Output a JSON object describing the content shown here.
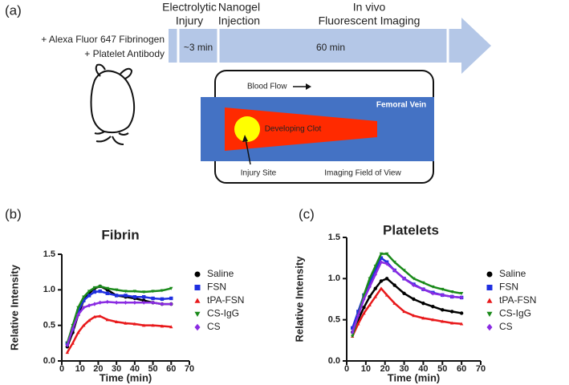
{
  "diagram": {
    "panel_label": "(a)",
    "injury_label": [
      "Electrolytic",
      "Injury"
    ],
    "injection_label": [
      "Nanogel",
      "Injection"
    ],
    "imaging_label": [
      "In vivo",
      "Fluorescent Imaging"
    ],
    "reagents": [
      "+ Alexa Fluor 647 Fibrinogen",
      "+ Platelet Antibody"
    ],
    "interval_short": "~3 min",
    "interval_long": "60 min",
    "blood_flow": "Blood Flow",
    "vein": "Femoral Vein",
    "clot": "Developing Clot",
    "injury_site": "Injury Site",
    "field_of_view": "Imaging Field of View"
  },
  "chart_data": [
    {
      "type": "line",
      "panel_label": "(b)",
      "title": "Fibrin",
      "x_label": "Time (min)",
      "y_label": "Relative Intensity",
      "x": [
        3,
        6,
        9,
        12,
        15,
        18,
        21,
        25,
        30,
        35,
        40,
        45,
        50,
        55,
        60
      ],
      "xlim": [
        0,
        70
      ],
      "xticks": [
        0,
        10,
        20,
        30,
        40,
        50,
        60,
        70
      ],
      "ylim": [
        0,
        1.5
      ],
      "yticks": [
        {
          "value": 0,
          "label": "0.0"
        },
        0.5,
        {
          "value": 1,
          "label": "1.0"
        },
        1.5
      ],
      "series": [
        {
          "name": "Saline",
          "color": "#000000",
          "marker": "circle",
          "values": [
            0.2,
            0.4,
            0.65,
            0.85,
            0.95,
            1.02,
            1.05,
            1.0,
            0.92,
            0.9,
            0.88,
            0.85,
            0.82,
            0.8,
            0.8
          ]
        },
        {
          "name": "FSN",
          "color": "#1f2fe0",
          "marker": "square",
          "values": [
            0.25,
            0.45,
            0.7,
            0.85,
            0.92,
            0.97,
            0.98,
            0.95,
            0.92,
            0.92,
            0.9,
            0.9,
            0.88,
            0.87,
            0.88
          ]
        },
        {
          "name": "tPA-FSN",
          "color": "#e8191b",
          "marker": "triangle",
          "values": [
            0.12,
            0.25,
            0.4,
            0.5,
            0.57,
            0.62,
            0.63,
            0.58,
            0.55,
            0.53,
            0.52,
            0.5,
            0.5,
            0.49,
            0.48
          ]
        },
        {
          "name": "CS-IgG",
          "color": "#1a8a1a",
          "marker": "triangle-down",
          "values": [
            0.25,
            0.5,
            0.75,
            0.9,
            0.98,
            1.03,
            1.05,
            1.02,
            1.0,
            0.98,
            0.98,
            0.97,
            0.98,
            0.99,
            1.02
          ]
        },
        {
          "name": "CS",
          "color": "#8a2be2",
          "marker": "diamond",
          "values": [
            0.22,
            0.45,
            0.65,
            0.75,
            0.78,
            0.8,
            0.82,
            0.83,
            0.82,
            0.82,
            0.82,
            0.82,
            0.82,
            0.8,
            0.8
          ]
        }
      ]
    },
    {
      "type": "line",
      "panel_label": "(c)",
      "title": "Platelets",
      "x_label": "Time (min)",
      "y_label": "Relative Intensity",
      "x": [
        3,
        6,
        9,
        12,
        15,
        18,
        21,
        25,
        30,
        35,
        40,
        45,
        50,
        55,
        60
      ],
      "xlim": [
        0,
        70
      ],
      "xticks": [
        0,
        10,
        20,
        30,
        40,
        50,
        60,
        70
      ],
      "ylim": [
        0,
        1.5
      ],
      "yticks": [
        {
          "value": 0,
          "label": "0.0"
        },
        0.5,
        {
          "value": 1,
          "label": "1.0"
        },
        1.5
      ],
      "series": [
        {
          "name": "Saline",
          "color": "#000000",
          "marker": "circle",
          "values": [
            0.35,
            0.5,
            0.65,
            0.78,
            0.88,
            0.97,
            1.0,
            0.92,
            0.82,
            0.75,
            0.7,
            0.66,
            0.62,
            0.6,
            0.58
          ]
        },
        {
          "name": "FSN",
          "color": "#1f2fe0",
          "marker": "square",
          "values": [
            0.4,
            0.6,
            0.8,
            0.95,
            1.1,
            1.25,
            1.2,
            1.1,
            1.0,
            0.93,
            0.87,
            0.83,
            0.8,
            0.78,
            0.77
          ]
        },
        {
          "name": "tPA-FSN",
          "color": "#e8191b",
          "marker": "triangle",
          "values": [
            0.3,
            0.45,
            0.58,
            0.68,
            0.78,
            0.88,
            0.8,
            0.7,
            0.6,
            0.55,
            0.52,
            0.5,
            0.48,
            0.46,
            0.45
          ]
        },
        {
          "name": "CS-IgG",
          "color": "#1a8a1a",
          "marker": "triangle-down",
          "values": [
            0.3,
            0.55,
            0.8,
            1.0,
            1.15,
            1.3,
            1.3,
            1.2,
            1.1,
            1.0,
            0.95,
            0.9,
            0.87,
            0.84,
            0.82
          ]
        },
        {
          "name": "CS",
          "color": "#8a2be2",
          "marker": "diamond",
          "values": [
            0.35,
            0.55,
            0.75,
            0.9,
            1.05,
            1.2,
            1.18,
            1.1,
            1.0,
            0.92,
            0.87,
            0.82,
            0.8,
            0.78,
            0.77
          ]
        }
      ]
    }
  ]
}
